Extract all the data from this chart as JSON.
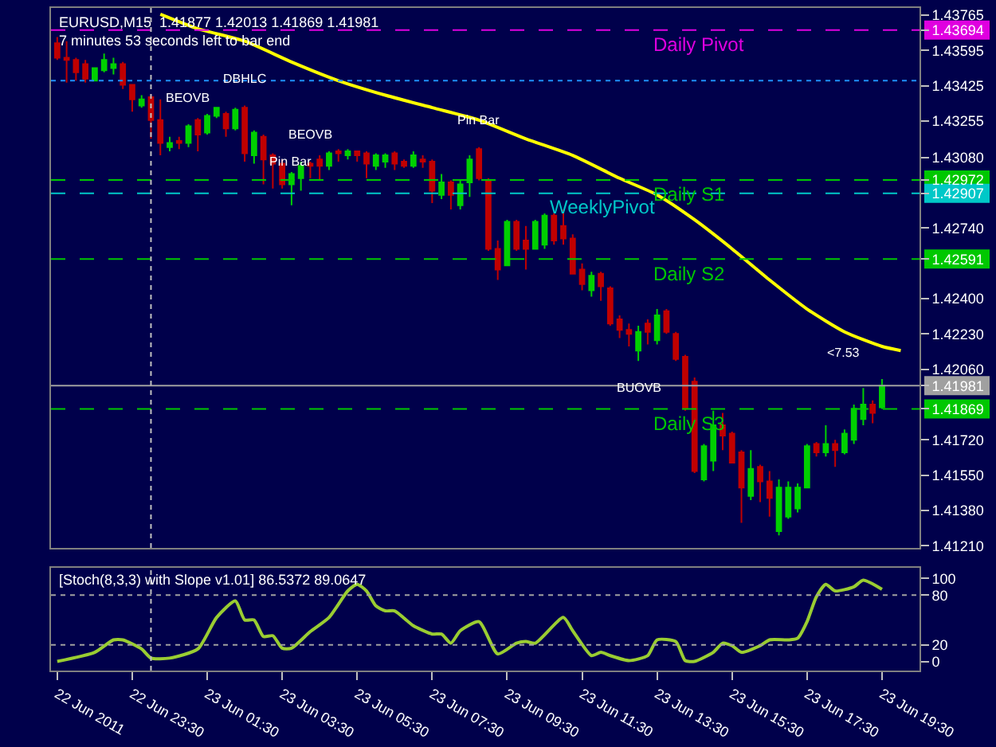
{
  "chart_data": [
    {
      "type": "candlestick",
      "title": "EURUSD,M15  1.41877 1.42013 1.41869 1.41981",
      "subtitle": "7 minutes 53 seconds left to bar end",
      "x": [
        "2011-06-22T21:30",
        "2011-06-22T21:45",
        "2011-06-22T22:00",
        "2011-06-22T22:15",
        "2011-06-22T22:30",
        "2011-06-22T22:45",
        "2011-06-22T23:00",
        "2011-06-22T23:15",
        "2011-06-22T23:30",
        "2011-06-22T23:45",
        "2011-06-23T00:00",
        "2011-06-23T00:15",
        "2011-06-23T00:30",
        "2011-06-23T00:45",
        "2011-06-23T01:00",
        "2011-06-23T01:15",
        "2011-06-23T01:30",
        "2011-06-23T01:45",
        "2011-06-23T02:00",
        "2011-06-23T02:15",
        "2011-06-23T02:30",
        "2011-06-23T02:45",
        "2011-06-23T03:00",
        "2011-06-23T03:15",
        "2011-06-23T03:30",
        "2011-06-23T03:45",
        "2011-06-23T04:00",
        "2011-06-23T04:15",
        "2011-06-23T04:30",
        "2011-06-23T04:45",
        "2011-06-23T05:00",
        "2011-06-23T05:15",
        "2011-06-23T05:30",
        "2011-06-23T05:45",
        "2011-06-23T06:00",
        "2011-06-23T06:15",
        "2011-06-23T06:30",
        "2011-06-23T06:45",
        "2011-06-23T07:00",
        "2011-06-23T07:15",
        "2011-06-23T07:30",
        "2011-06-23T07:45",
        "2011-06-23T08:00",
        "2011-06-23T08:15",
        "2011-06-23T08:30",
        "2011-06-23T08:45",
        "2011-06-23T09:00",
        "2011-06-23T09:15",
        "2011-06-23T09:30",
        "2011-06-23T09:45",
        "2011-06-23T10:00",
        "2011-06-23T10:15",
        "2011-06-23T10:30",
        "2011-06-23T10:45",
        "2011-06-23T11:00",
        "2011-06-23T11:15",
        "2011-06-23T11:30",
        "2011-06-23T11:45",
        "2011-06-23T12:00",
        "2011-06-23T12:15",
        "2011-06-23T12:30",
        "2011-06-23T12:45",
        "2011-06-23T13:00",
        "2011-06-23T13:15",
        "2011-06-23T13:30",
        "2011-06-23T13:45",
        "2011-06-23T14:00",
        "2011-06-23T14:15",
        "2011-06-23T14:30",
        "2011-06-23T14:45",
        "2011-06-23T15:00",
        "2011-06-23T15:15",
        "2011-06-23T15:30",
        "2011-06-23T15:45",
        "2011-06-23T16:00",
        "2011-06-23T16:15",
        "2011-06-23T16:30",
        "2011-06-23T16:45",
        "2011-06-23T17:00",
        "2011-06-23T17:15",
        "2011-06-23T17:30",
        "2011-06-23T17:45",
        "2011-06-23T18:00",
        "2011-06-23T18:15",
        "2011-06-23T18:30",
        "2011-06-23T18:45",
        "2011-06-23T19:00",
        "2011-06-23T19:15",
        "2011-06-23T19:30"
      ],
      "ohlc": [
        [
          1.4363,
          1.4366,
          1.4355,
          1.4356
        ],
        [
          1.4356,
          1.4364,
          1.4344,
          1.4355
        ],
        [
          1.4355,
          1.4356,
          1.4345,
          1.4349
        ],
        [
          1.4353,
          1.4355,
          1.4344,
          1.4346
        ],
        [
          1.4345,
          1.4351,
          1.4345,
          1.4351
        ],
        [
          1.435,
          1.4358,
          1.4349,
          1.4355
        ],
        [
          1.4351,
          1.4356,
          1.4348,
          1.4353
        ],
        [
          1.4353,
          1.4354,
          1.4341,
          1.4343
        ],
        [
          1.4343,
          1.4343,
          1.433,
          1.4336
        ],
        [
          1.4333,
          1.4338,
          1.4332,
          1.4336
        ],
        [
          1.4337,
          1.4338,
          1.4317,
          1.4326
        ],
        [
          1.4326,
          1.4336,
          1.4309,
          1.4315
        ],
        [
          1.4313,
          1.4318,
          1.4311,
          1.4315
        ],
        [
          1.4316,
          1.4318,
          1.4312,
          1.4315
        ],
        [
          1.4315,
          1.4324,
          1.4313,
          1.4323
        ],
        [
          1.4326,
          1.4327,
          1.4311,
          1.4319
        ],
        [
          1.432,
          1.4329,
          1.4319,
          1.4328
        ],
        [
          1.4328,
          1.4332,
          1.4327,
          1.4332
        ],
        [
          1.4329,
          1.433,
          1.4318,
          1.4322
        ],
        [
          1.4322,
          1.4332,
          1.4321,
          1.4331
        ],
        [
          1.4332,
          1.4333,
          1.4306,
          1.431
        ],
        [
          1.4309,
          1.4321,
          1.4305,
          1.432
        ],
        [
          1.4318,
          1.4319,
          1.4295,
          1.4307
        ],
        [
          1.4309,
          1.431,
          1.4293,
          1.4305
        ],
        [
          1.4305,
          1.4307,
          1.4293,
          1.4295
        ],
        [
          1.4295,
          1.4301,
          1.4285,
          1.43
        ],
        [
          1.4298,
          1.4306,
          1.4292,
          1.4304
        ],
        [
          1.4305,
          1.4306,
          1.4298,
          1.4304
        ],
        [
          1.4307,
          1.4309,
          1.4297,
          1.4304
        ],
        [
          1.4304,
          1.4311,
          1.4302,
          1.431
        ],
        [
          1.4311,
          1.4312,
          1.4306,
          1.431
        ],
        [
          1.4309,
          1.4312,
          1.4307,
          1.4311
        ],
        [
          1.4311,
          1.4311,
          1.4306,
          1.4309
        ],
        [
          1.431,
          1.4311,
          1.4298,
          1.4305
        ],
        [
          1.4304,
          1.431,
          1.4302,
          1.4309
        ],
        [
          1.4306,
          1.431,
          1.4303,
          1.4309
        ],
        [
          1.431,
          1.4311,
          1.4302,
          1.4305
        ],
        [
          1.4306,
          1.4307,
          1.4303,
          1.4304
        ],
        [
          1.4304,
          1.4311,
          1.4303,
          1.4309
        ],
        [
          1.4307,
          1.4309,
          1.4303,
          1.4306
        ],
        [
          1.4306,
          1.4307,
          1.4286,
          1.4292
        ],
        [
          1.429,
          1.43,
          1.4288,
          1.4296
        ],
        [
          1.4296,
          1.4297,
          1.4283,
          1.429
        ],
        [
          1.4285,
          1.4297,
          1.4283,
          1.4295
        ],
        [
          1.4296,
          1.4309,
          1.4289,
          1.4307
        ],
        [
          1.4312,
          1.4313,
          1.4297,
          1.4298
        ],
        [
          1.4297,
          1.4298,
          1.4263,
          1.4264
        ],
        [
          1.4264,
          1.4268,
          1.4249,
          1.4254
        ],
        [
          1.4256,
          1.4278,
          1.4256,
          1.4277
        ],
        [
          1.4277,
          1.4278,
          1.4263,
          1.4264
        ],
        [
          1.4268,
          1.4275,
          1.4254,
          1.4264
        ],
        [
          1.4264,
          1.4278,
          1.4264,
          1.4277
        ],
        [
          1.4266,
          1.4281,
          1.4264,
          1.428
        ],
        [
          1.428,
          1.4281,
          1.4266,
          1.4268
        ],
        [
          1.4275,
          1.4283,
          1.4266,
          1.4269
        ],
        [
          1.4269,
          1.4271,
          1.4252,
          1.4252
        ],
        [
          1.4254,
          1.4257,
          1.4244,
          1.4247
        ],
        [
          1.4244,
          1.4253,
          1.4241,
          1.4251
        ],
        [
          1.4252,
          1.4253,
          1.4239,
          1.4246
        ],
        [
          1.4245,
          1.4246,
          1.4227,
          1.4228
        ],
        [
          1.423,
          1.4232,
          1.4221,
          1.4225
        ],
        [
          1.4225,
          1.4228,
          1.4217,
          1.4223
        ],
        [
          1.4215,
          1.4227,
          1.421,
          1.4224
        ],
        [
          1.4228,
          1.423,
          1.4218,
          1.4224
        ],
        [
          1.422,
          1.4235,
          1.4218,
          1.4232
        ],
        [
          1.4234,
          1.4235,
          1.4223,
          1.4224
        ],
        [
          1.4223,
          1.4224,
          1.421,
          1.4211
        ],
        [
          1.4212,
          1.4213,
          1.4186,
          1.4187
        ],
        [
          1.42,
          1.4202,
          1.4156,
          1.4157
        ],
        [
          1.4153,
          1.417,
          1.4152,
          1.4169
        ],
        [
          1.4162,
          1.4186,
          1.4157,
          1.4179
        ],
        [
          1.4179,
          1.4185,
          1.4167,
          1.4174
        ],
        [
          1.4175,
          1.4176,
          1.4161,
          1.4161
        ],
        [
          1.4166,
          1.4167,
          1.4132,
          1.4149
        ],
        [
          1.4145,
          1.4167,
          1.4143,
          1.4158
        ],
        [
          1.4159,
          1.416,
          1.4142,
          1.4152
        ],
        [
          1.4152,
          1.4157,
          1.4135,
          1.4144
        ],
        [
          1.4128,
          1.4153,
          1.4126,
          1.4149
        ],
        [
          1.4135,
          1.4152,
          1.4134,
          1.4149
        ],
        [
          1.4139,
          1.4151,
          1.4137,
          1.4149
        ],
        [
          1.4149,
          1.417,
          1.4149,
          1.4169
        ],
        [
          1.417,
          1.4171,
          1.4164,
          1.4166
        ],
        [
          1.4166,
          1.4179,
          1.4164,
          1.417
        ],
        [
          1.417,
          1.4172,
          1.4159,
          1.4167
        ],
        [
          1.4166,
          1.4177,
          1.4165,
          1.4175
        ],
        [
          1.4172,
          1.4189,
          1.417,
          1.4187
        ],
        [
          1.4182,
          1.4197,
          1.4179,
          1.4189
        ],
        [
          1.4189,
          1.4191,
          1.418,
          1.4185
        ],
        [
          1.41877,
          1.42013,
          1.41869,
          1.41981
        ]
      ],
      "series": [
        {
          "type": "line",
          "color": "#ffff00",
          "x": [
            "2011-06-23T00:15",
            "2011-06-23T01:15",
            "2011-06-23T02:30",
            "2011-06-23T03:45",
            "2011-06-23T05:00",
            "2011-06-23T06:15",
            "2011-06-23T07:30",
            "2011-06-23T08:45",
            "2011-06-23T10:00",
            "2011-06-23T11:15",
            "2011-06-23T12:30",
            "2011-06-23T13:30",
            "2011-06-23T14:30",
            "2011-06-23T15:30",
            "2011-06-23T16:30",
            "2011-06-23T17:30",
            "2011-06-23T18:30",
            "2011-06-23T19:30",
            "2011-06-23T20:00"
          ],
          "values": [
            1.4377,
            1.437,
            1.4364,
            1.4354,
            1.4345,
            1.4338,
            1.4332,
            1.4326,
            1.4317,
            1.4309,
            1.4298,
            1.429,
            1.4278,
            1.4264,
            1.4249,
            1.4235,
            1.4224,
            1.4217,
            1.4215
          ]
        }
      ],
      "xlim": [
        "2011-06-22T21:20",
        "2011-06-23T20:30"
      ],
      "ylim": [
        1.412,
        1.438
      ],
      "yticks": [
        1.43765,
        {
          "value": 1.43694,
          "label": "1.43694"
        },
        1.43595,
        1.43425,
        1.43255,
        {
          "value": 1.4308,
          "label": "1.43080"
        },
        {
          "value": 1.42972,
          "label": "1.42972"
        },
        {
          "value": 1.42907,
          "label": "1.42907"
        },
        {
          "value": 1.4274,
          "label": "1.42740"
        },
        {
          "value": 1.42591,
          "label": "1.42591"
        },
        {
          "value": 1.424,
          "label": "1.42400"
        },
        {
          "value": 1.4223,
          "label": "1.42230"
        },
        {
          "value": 1.4206,
          "label": "1.42060"
        },
        {
          "value": 1.41981,
          "label": "1.41981"
        },
        {
          "value": 1.41869,
          "label": "1.41869"
        },
        {
          "value": 1.4172,
          "label": "1.41720"
        },
        {
          "value": 1.4155,
          "label": "1.41550"
        },
        {
          "value": 1.4138,
          "label": "1.41380"
        },
        {
          "value": 1.4121,
          "label": "1.41210"
        }
      ],
      "tick_labels": "y",
      "ref_lines": [
        {
          "axis": "y",
          "value": 1.43694,
          "label": "Daily Pivot",
          "color": "#e000e0",
          "line_style": "dashed"
        },
        {
          "axis": "y",
          "value": 1.42972,
          "label": "Daily S1",
          "color": "#00c800",
          "line_style": "dashed"
        },
        {
          "axis": "y",
          "value": 1.42907,
          "label": "WeeklyPivot",
          "color": "#00c8c8",
          "line_style": "dashed"
        },
        {
          "axis": "y",
          "value": 1.42591,
          "label": "Daily S2",
          "color": "#00c800",
          "line_style": "dashed"
        },
        {
          "axis": "y",
          "value": 1.41869,
          "label": "Daily S3",
          "color": "#00c800",
          "line_style": "dashed"
        },
        {
          "axis": "y",
          "value": 1.41981,
          "color": "#a0a0a0",
          "line_style": "solid"
        },
        {
          "axis": "y",
          "value": 1.4345,
          "color": "#1e90ff",
          "line_style": "dotted"
        },
        {
          "axis": "x",
          "value": "2011-06-23T00:00",
          "color": "#c0c0c0",
          "line_style": "dotted"
        }
      ],
      "annotations": [
        {
          "text": "BEOVB",
          "x": "2011-06-23T01:00",
          "y": 1.4324
        },
        {
          "text": "DBHLC",
          "x": "2011-06-23T02:30",
          "y": 1.4333
        },
        {
          "text": "BEOVB",
          "x": "2011-06-23T04:15",
          "y": 1.4306
        },
        {
          "text": "Pin Bar",
          "x": "2011-06-23T03:45",
          "y": 1.4293
        },
        {
          "text": "Pin Bar",
          "x": "2011-06-23T08:45",
          "y": 1.4313
        },
        {
          "text": "BUOVB",
          "x": "2011-06-23T13:00",
          "y": 1.421
        },
        {
          "text": "<7.53",
          "x": "2011-06-23T18:30",
          "y": 1.4201
        }
      ]
    },
    {
      "type": "line",
      "title": "[Stoch(8,3,3) with Slope v1.01] 86.5372 89.0647",
      "x": [
        "2011-06-22T21:30",
        "2011-06-22T22:30",
        "2011-06-22T23:00",
        "2011-06-22T23:15",
        "2011-06-22T23:45",
        "2011-06-23T00:00",
        "2011-06-23T00:30",
        "2011-06-23T01:15",
        "2011-06-23T01:45",
        "2011-06-23T02:15",
        "2011-06-23T02:30",
        "2011-06-23T02:45",
        "2011-06-23T03:00",
        "2011-06-23T03:15",
        "2011-06-23T03:30",
        "2011-06-23T03:45",
        "2011-06-23T04:15",
        "2011-06-23T04:45",
        "2011-06-23T05:15",
        "2011-06-23T05:30",
        "2011-06-23T05:45",
        "2011-06-23T06:00",
        "2011-06-23T06:15",
        "2011-06-23T06:30",
        "2011-06-23T07:00",
        "2011-06-23T07:30",
        "2011-06-23T07:45",
        "2011-06-23T08:00",
        "2011-06-23T08:15",
        "2011-06-23T08:45",
        "2011-06-23T09:15",
        "2011-06-23T09:45",
        "2011-06-23T10:00",
        "2011-06-23T10:15",
        "2011-06-23T11:00",
        "2011-06-23T11:15",
        "2011-06-23T11:45",
        "2011-06-23T12:00",
        "2011-06-23T12:15",
        "2011-06-23T12:45",
        "2011-06-23T13:15",
        "2011-06-23T13:30",
        "2011-06-23T14:00",
        "2011-06-23T14:15",
        "2011-06-23T14:30",
        "2011-06-23T15:00",
        "2011-06-23T15:15",
        "2011-06-23T15:30",
        "2011-06-23T15:45",
        "2011-06-23T16:15",
        "2011-06-23T16:30",
        "2011-06-23T17:00",
        "2011-06-23T17:15",
        "2011-06-23T17:30",
        "2011-06-23T17:45",
        "2011-06-23T18:00",
        "2011-06-23T18:15",
        "2011-06-23T18:45",
        "2011-06-23T19:00",
        "2011-06-23T19:30"
      ],
      "series": [
        {
          "color": "#9acd32",
          "values": [
            0,
            11,
            26,
            26,
            15,
            4,
            4,
            15,
            53,
            73,
            50,
            50,
            30,
            31,
            16,
            16,
            36,
            53,
            85,
            93,
            85,
            67,
            61,
            61,
            43,
            33,
            33,
            22,
            37,
            48,
            9,
            22,
            24,
            22,
            53,
            37,
            7,
            11,
            7,
            1,
            7,
            26,
            24,
            1,
            0,
            11,
            22,
            19,
            11,
            19,
            26,
            26,
            28,
            48,
            78,
            93,
            85,
            90,
            98,
            87
          ]
        }
      ],
      "xlim": [
        "2011-06-22T21:20",
        "2011-06-23T20:30"
      ],
      "xticks": [
        {
          "value": "2011-06-22T21:30",
          "label": "22 Jun 2011"
        },
        {
          "value": "2011-06-22T23:30",
          "label": "22 Jun 23:30"
        },
        {
          "value": "2011-06-23T01:30",
          "label": "23 Jun 01:30"
        },
        {
          "value": "2011-06-23T03:30",
          "label": "23 Jun 03:30"
        },
        {
          "value": "2011-06-23T05:30",
          "label": "23 Jun 05:30"
        },
        {
          "value": "2011-06-23T07:30",
          "label": "23 Jun 07:30"
        },
        {
          "value": "2011-06-23T09:30",
          "label": "23 Jun 09:30"
        },
        {
          "value": "2011-06-23T11:30",
          "label": "23 Jun 11:30"
        },
        {
          "value": "2011-06-23T13:30",
          "label": "23 Jun 13:30"
        },
        {
          "value": "2011-06-23T15:30",
          "label": "23 Jun 15:30"
        },
        {
          "value": "2011-06-23T17:30",
          "label": "23 Jun 17:30"
        },
        {
          "value": "2011-06-23T19:30",
          "label": "23 Jun 19:30"
        }
      ],
      "ylim": [
        -11,
        113
      ],
      "yticks": [
        0,
        20,
        80,
        100
      ],
      "ref_lines": [
        {
          "axis": "y",
          "value": 80,
          "color": "#a0a0a0",
          "line_style": "dotted"
        },
        {
          "axis": "y",
          "value": 20,
          "color": "#a0a0a0",
          "line_style": "dotted"
        },
        {
          "axis": "x",
          "value": "2011-06-23T00:00",
          "color": "#c0c0c0",
          "line_style": "dotted"
        }
      ]
    }
  ]
}
